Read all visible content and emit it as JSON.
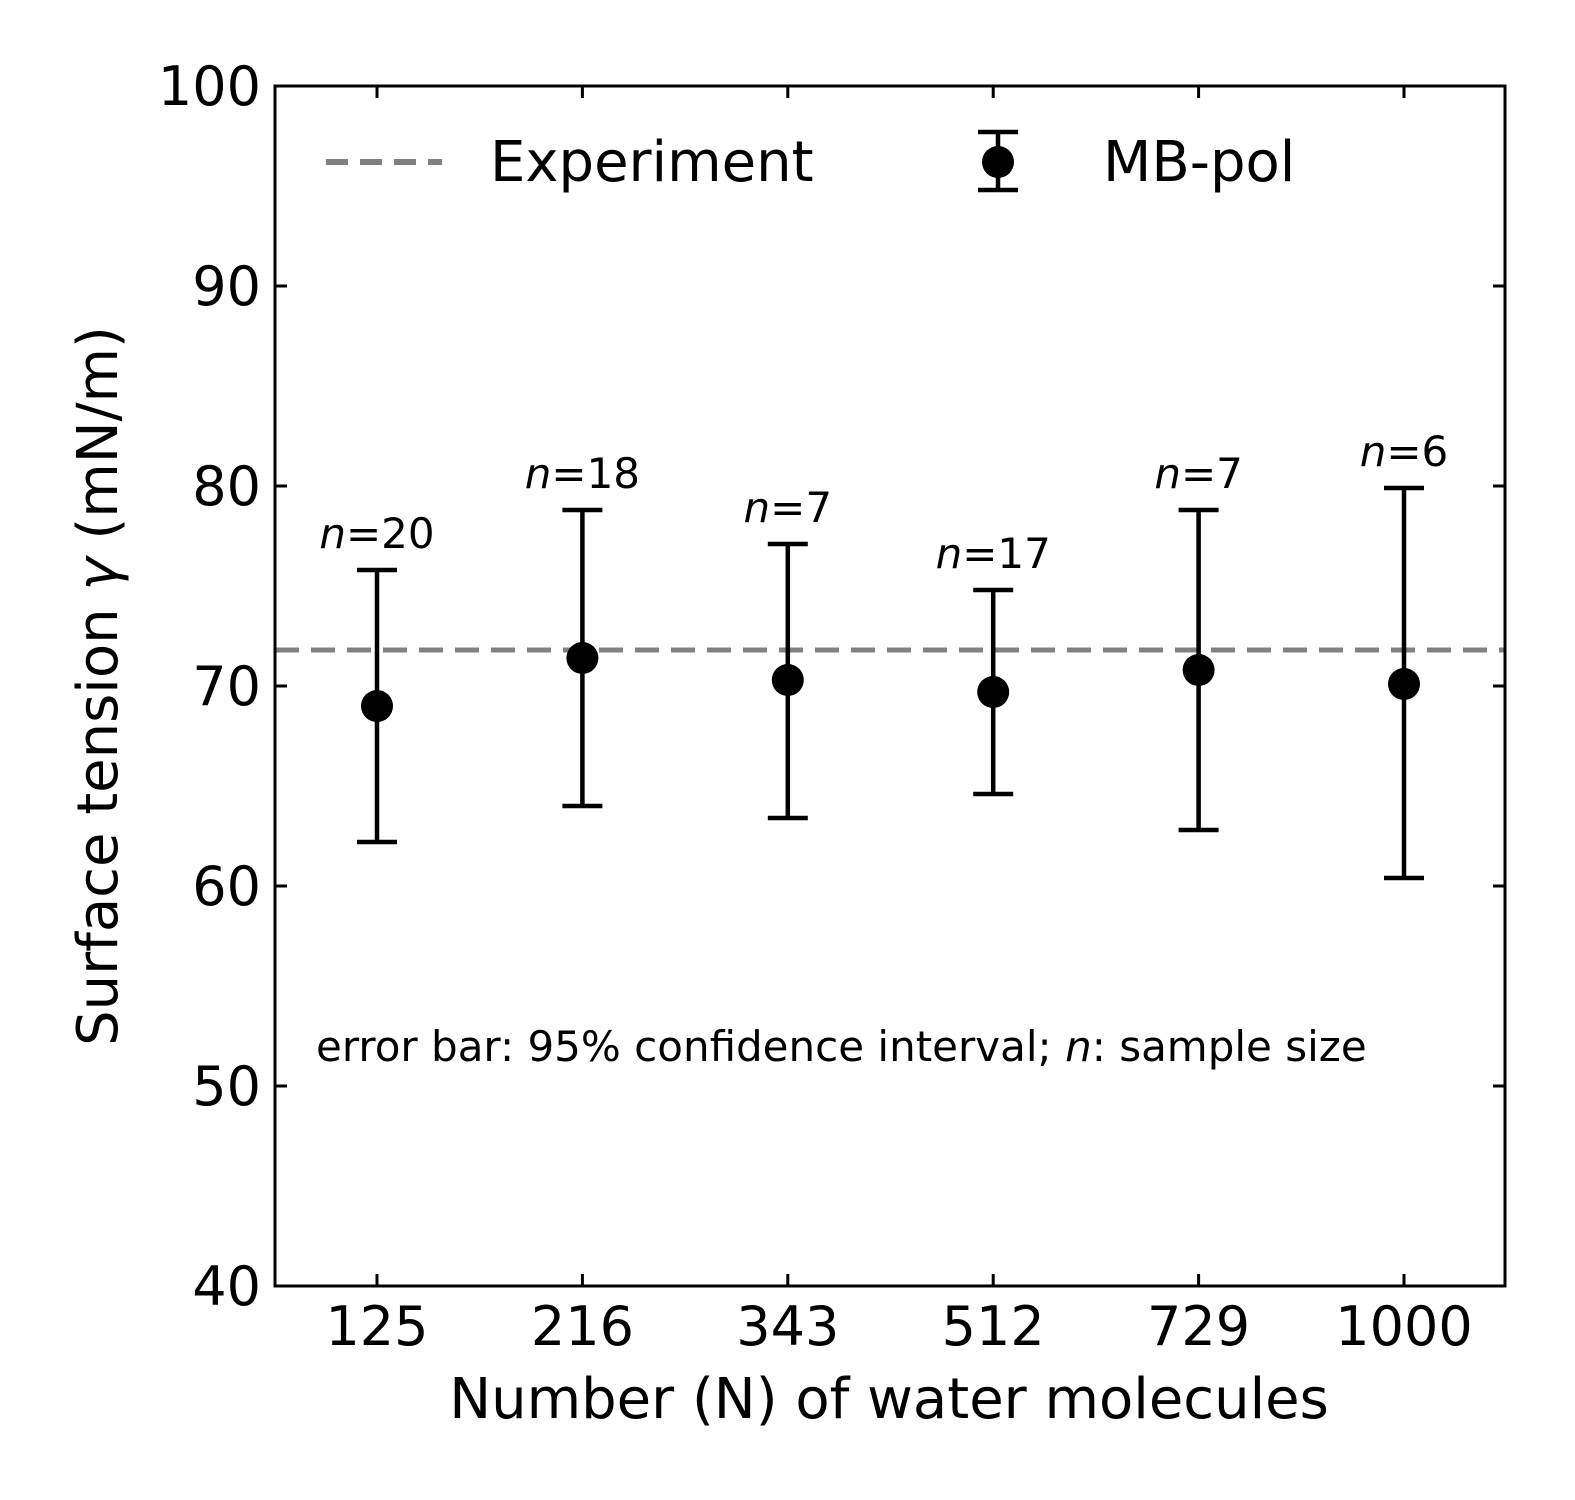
{
  "chart_data": {
    "type": "scatter",
    "xlabel": "Number (N) of water molecules",
    "ylabel": {
      "prefix": "Surface tension ",
      "symbol": "γ",
      "suffix": " (mN/m)"
    },
    "categories": [
      "125",
      "216",
      "343",
      "512",
      "729",
      "1000"
    ],
    "ylim": [
      40,
      100
    ],
    "yticks": [
      40,
      50,
      60,
      70,
      80,
      90,
      100
    ],
    "legend_position": "top",
    "reference_line": {
      "name": "Experiment",
      "value": 71.8,
      "style": "dashed",
      "color": "#808080"
    },
    "series": [
      {
        "name": "MB-pol",
        "color": "#000000",
        "values": [
          69.0,
          71.4,
          70.3,
          69.7,
          70.8,
          70.1
        ],
        "error_low": [
          62.2,
          64.0,
          63.4,
          64.6,
          62.8,
          60.4
        ],
        "error_high": [
          75.8,
          78.8,
          77.1,
          74.8,
          78.8,
          79.9
        ],
        "sample_sizes": [
          {
            "var": "n",
            "eq": "=20"
          },
          {
            "var": "n",
            "eq": "=18"
          },
          {
            "var": "n",
            "eq": "=7"
          },
          {
            "var": "n",
            "eq": "=17"
          },
          {
            "var": "n",
            "eq": "=7"
          },
          {
            "var": "n",
            "eq": "=6"
          }
        ]
      }
    ],
    "annotation": {
      "part1": "error bar: 95% confidence interval; ",
      "var": "n",
      "part2": ": sample size"
    }
  }
}
